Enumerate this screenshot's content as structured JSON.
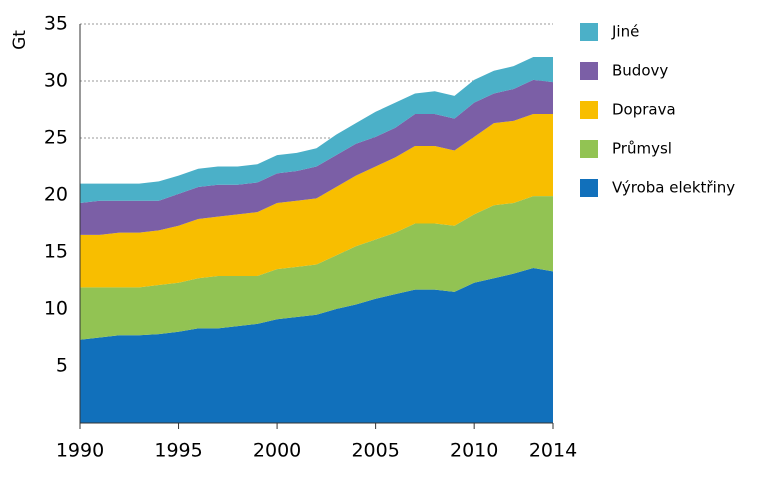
{
  "chart_data": {
    "type": "stacked_area",
    "y_label": "Gt",
    "x": [
      1990,
      1991,
      1992,
      1993,
      1994,
      1995,
      1996,
      1997,
      1998,
      1999,
      2000,
      2001,
      2002,
      2003,
      2004,
      2005,
      2006,
      2007,
      2008,
      2009,
      2010,
      2011,
      2012,
      2013,
      2014
    ],
    "series": [
      {
        "name": "Výroba elektřiny",
        "color": "#1170bb",
        "values": [
          7.3,
          7.5,
          7.7,
          7.7,
          7.8,
          8.0,
          8.3,
          8.3,
          8.5,
          8.7,
          9.1,
          9.3,
          9.5,
          10.0,
          10.4,
          10.9,
          11.3,
          11.7,
          11.7,
          11.5,
          12.3,
          12.7,
          13.1,
          13.6,
          13.3
        ]
      },
      {
        "name": "Průmysl",
        "color": "#92c353",
        "values": [
          4.6,
          4.4,
          4.2,
          4.2,
          4.3,
          4.3,
          4.4,
          4.6,
          4.4,
          4.2,
          4.4,
          4.4,
          4.4,
          4.7,
          5.1,
          5.2,
          5.4,
          5.8,
          5.8,
          5.8,
          6.0,
          6.4,
          6.2,
          6.3,
          6.6
        ]
      },
      {
        "name": "Doprava",
        "color": "#f8be00",
        "values": [
          4.6,
          4.6,
          4.8,
          4.8,
          4.8,
          5.0,
          5.2,
          5.2,
          5.4,
          5.6,
          5.8,
          5.8,
          5.8,
          6.0,
          6.2,
          6.4,
          6.6,
          6.8,
          6.8,
          6.6,
          6.8,
          7.2,
          7.2,
          7.2,
          7.2
        ]
      },
      {
        "name": "Budovy",
        "color": "#7b5fa6",
        "values": [
          2.8,
          3.0,
          2.8,
          2.8,
          2.6,
          2.8,
          2.8,
          2.8,
          2.6,
          2.6,
          2.6,
          2.6,
          2.8,
          2.8,
          2.8,
          2.6,
          2.6,
          2.8,
          2.8,
          2.8,
          3.0,
          2.6,
          2.8,
          3.0,
          2.8
        ]
      },
      {
        "name": "Jiné",
        "color": "#4bb0c8",
        "values": [
          1.7,
          1.5,
          1.5,
          1.5,
          1.7,
          1.6,
          1.6,
          1.6,
          1.6,
          1.6,
          1.6,
          1.6,
          1.6,
          1.8,
          1.8,
          2.2,
          2.2,
          1.8,
          2.0,
          2.0,
          2.0,
          2.0,
          2.0,
          2.0,
          2.2
        ]
      }
    ],
    "xlim": [
      1990,
      2014
    ],
    "xticks": [
      1990,
      1995,
      2000,
      2005,
      2010,
      2014
    ],
    "ylim": [
      0,
      35
    ],
    "yticks": [
      5,
      10,
      15,
      20,
      25,
      30,
      35
    ],
    "grid": true,
    "legend": "right"
  }
}
